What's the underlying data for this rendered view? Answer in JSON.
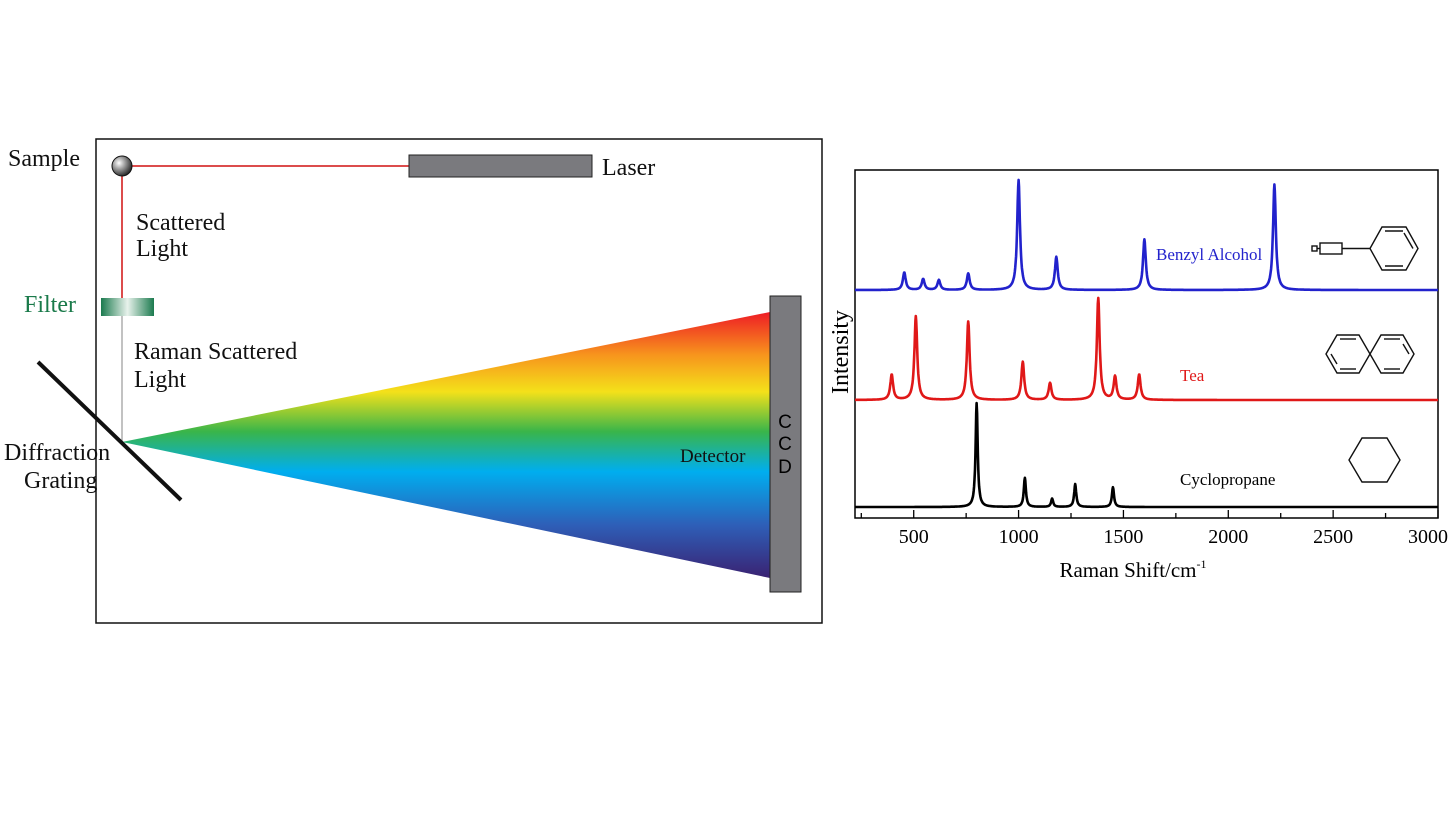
{
  "diagram": {
    "labels": {
      "sample": "Sample",
      "laser": "Laser",
      "scattered_line1": "Scattered",
      "scattered_line2": "Light",
      "filter": "Filter",
      "raman_line1": "Raman Scattered",
      "raman_line2": "Light",
      "grating_line1": "Diffraction",
      "grating_line2": "Grating",
      "detector": "Detector",
      "ccd_c1": "C",
      "ccd_c2": "C",
      "ccd_d": "D"
    },
    "colors": {
      "laser_beam": "#d01010",
      "filter_label": "#1a7a4a",
      "device_gray": "#7a7a7e"
    }
  },
  "chart_data": {
    "type": "line",
    "xlabel": "Raman Shift/cm",
    "xlabel_superscript": "-1",
    "ylabel": "Intensity",
    "xlim": [
      220,
      3000
    ],
    "x_ticks": [
      500,
      1000,
      1500,
      2000,
      2500,
      3000
    ],
    "series": [
      {
        "name": "Benzyl Alcohol",
        "color": "#2222cc",
        "structure_icon": "benzyl-alcohol-structure-icon",
        "peaks": [
          {
            "x": 455,
            "h": 0.16
          },
          {
            "x": 545,
            "h": 0.1
          },
          {
            "x": 620,
            "h": 0.09
          },
          {
            "x": 760,
            "h": 0.15
          },
          {
            "x": 1000,
            "h": 1.0
          },
          {
            "x": 1180,
            "h": 0.3
          },
          {
            "x": 1600,
            "h": 0.46
          },
          {
            "x": 2220,
            "h": 0.96
          }
        ]
      },
      {
        "name": "Tea",
        "color": "#e01818",
        "structure_icon": "naphthalene-structure-icon",
        "peaks": [
          {
            "x": 395,
            "h": 0.24
          },
          {
            "x": 510,
            "h": 0.79
          },
          {
            "x": 760,
            "h": 0.74
          },
          {
            "x": 1020,
            "h": 0.36
          },
          {
            "x": 1150,
            "h": 0.16
          },
          {
            "x": 1380,
            "h": 0.96
          },
          {
            "x": 1460,
            "h": 0.22
          },
          {
            "x": 1575,
            "h": 0.24
          }
        ]
      },
      {
        "name": "Cyclopropane",
        "color": "#000000",
        "structure_icon": "cyclohexane-structure-icon",
        "peaks": [
          {
            "x": 800,
            "h": 1.0
          },
          {
            "x": 1030,
            "h": 0.28
          },
          {
            "x": 1160,
            "h": 0.08
          },
          {
            "x": 1270,
            "h": 0.22
          },
          {
            "x": 1450,
            "h": 0.19
          }
        ]
      }
    ]
  }
}
